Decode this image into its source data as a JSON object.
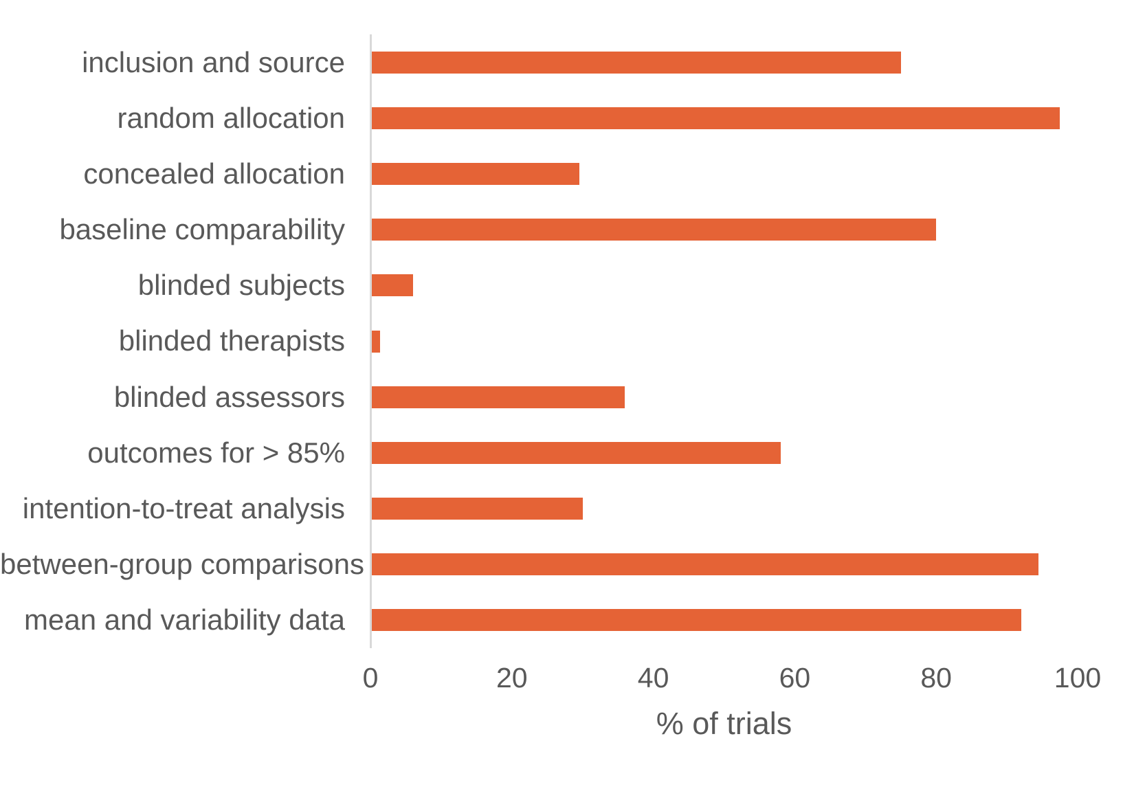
{
  "chart_data": {
    "type": "bar",
    "orientation": "horizontal",
    "title": "",
    "categories": [
      "inclusion and source",
      "random allocation",
      "concealed allocation",
      "baseline comparability",
      "blinded subjects",
      "blinded therapists",
      "blinded assessors",
      "outcomes for > 85%",
      "intention-to-treat analysis",
      "between-group comparisons",
      "mean and variability data"
    ],
    "values": [
      75,
      97.5,
      29.5,
      80,
      6,
      1.4,
      36,
      58,
      30,
      94.5,
      92
    ],
    "xlabel": "% of trials",
    "ylabel": "",
    "xlim": [
      0,
      100
    ],
    "xticks": [
      0,
      20,
      40,
      60,
      80,
      100
    ],
    "grid": false,
    "legend": false,
    "bar_color": "#e56336",
    "axis_line_color": "#d9d9d9",
    "text_color": "#595959",
    "background": "#ffffff"
  }
}
